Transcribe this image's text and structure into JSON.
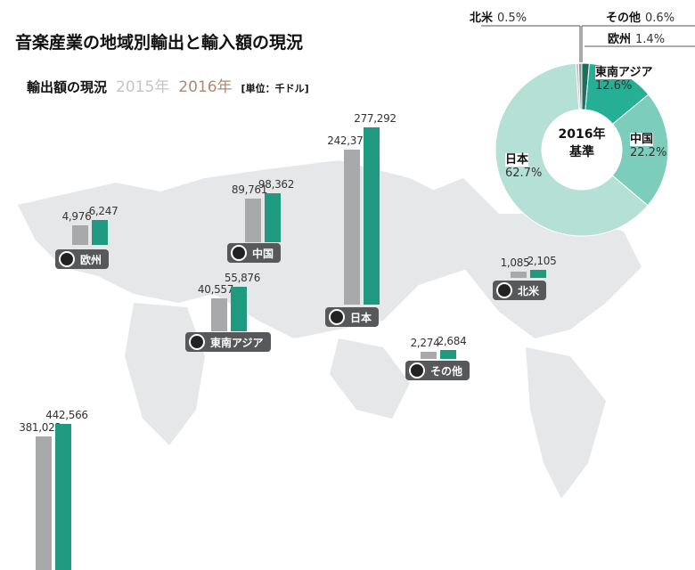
{
  "title": "音楽産業の地域別輸出と輸入額の現況",
  "subtitle": {
    "label": "輸出額の現況",
    "y2015": "2015年",
    "y2016": "2016年",
    "unit": "[単位：千ドル]"
  },
  "colors": {
    "y2015": "#a8a9ab",
    "y2016": "#1f9a80"
  },
  "chart_data": [
    {
      "type": "bar",
      "title": "輸出額の現況",
      "unit": "千ドル",
      "series_names": [
        "2015年",
        "2016年"
      ],
      "groups": [
        {
          "region": "欧州",
          "v2015": 4976,
          "v2016": 6247,
          "l2015": "4,976",
          "l2016": "6,247"
        },
        {
          "region": "中国",
          "v2015": 89761,
          "v2016": 98362,
          "l2015": "89,761",
          "l2016": "98,362"
        },
        {
          "region": "東南アジア",
          "v2015": 40557,
          "v2016": 55876,
          "l2015": "40,557",
          "l2016": "55,876"
        },
        {
          "region": "日本",
          "v2015": 242370,
          "v2016": 277292,
          "l2015": "242,370",
          "l2016": "277,292"
        },
        {
          "region": "その他",
          "v2015": 2274,
          "v2016": 2684,
          "l2015": "2,274",
          "l2016": "2,684"
        },
        {
          "region": "北米",
          "v2015": 1085,
          "v2016": 2105,
          "l2015": "1,085",
          "l2016": "2,105"
        },
        {
          "region": "",
          "v2015": 381023,
          "v2016": 442566,
          "l2015": "381,023",
          "l2016": "442,566"
        }
      ]
    },
    {
      "type": "pie",
      "title": "2016年基準",
      "center": [
        "2016年",
        "基準"
      ],
      "slices": [
        {
          "name": "北米",
          "value": 0.5,
          "label": "0.5%",
          "color": "#bfc3c2"
        },
        {
          "name": "その他",
          "value": 0.6,
          "label": "0.6%",
          "color": "#8f9593"
        },
        {
          "name": "欧州",
          "value": 1.4,
          "label": "1.4%",
          "color": "#1d6e5c"
        },
        {
          "name": "東南アジア",
          "value": 12.6,
          "label": "12.6%",
          "color": "#25b096"
        },
        {
          "name": "中国",
          "value": 22.2,
          "label": "22.2%",
          "color": "#7ccdbb"
        },
        {
          "name": "日本",
          "value": 62.7,
          "label": "62.7%",
          "color": "#b4e0d5"
        }
      ]
    }
  ]
}
